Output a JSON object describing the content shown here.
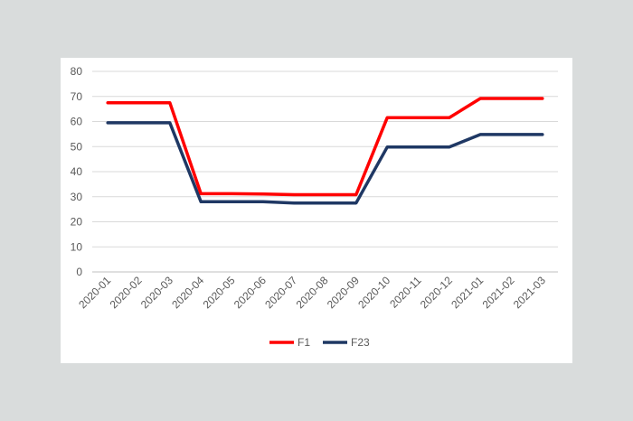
{
  "chart_data": {
    "type": "line",
    "title": "",
    "xlabel": "",
    "ylabel": "",
    "ylim": [
      0,
      80
    ],
    "yticks": [
      "0",
      "10",
      "20",
      "30",
      "40",
      "50",
      "60",
      "70",
      "80"
    ],
    "grid": true,
    "legend_position": "bottom",
    "categories": [
      "2020-01",
      "2020-02",
      "2020-03",
      "2020-04",
      "2020-05",
      "2020-06",
      "2020-07",
      "2020-08",
      "2020-09",
      "2020-10",
      "2020-11",
      "2020-12",
      "2021-01",
      "2021-02",
      "2021-03"
    ],
    "series": [
      {
        "name": "F1",
        "color": "#ff0000",
        "values": [
          67.5,
          67.5,
          67.5,
          31.2,
          31.2,
          31.1,
          30.8,
          30.8,
          30.8,
          61.5,
          61.5,
          61.5,
          69.2,
          69.2,
          69.2
        ]
      },
      {
        "name": "F23",
        "color": "#1f3864",
        "values": [
          59.5,
          59.5,
          59.5,
          28.0,
          28.0,
          28.0,
          27.5,
          27.5,
          27.5,
          49.8,
          49.8,
          49.8,
          54.8,
          54.8,
          54.8
        ]
      }
    ]
  }
}
